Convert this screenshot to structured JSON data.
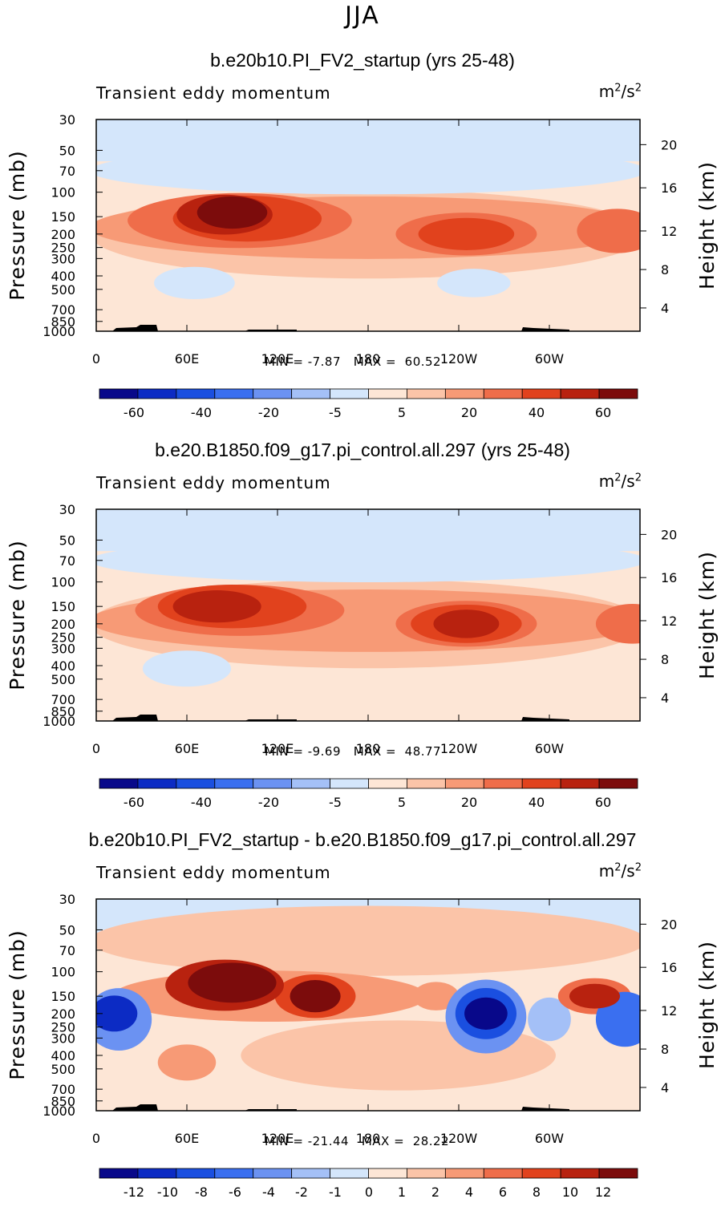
{
  "figure_title": "JJA",
  "colors": {
    "abs_scale": [
      "#08088a",
      "#0c2bc4",
      "#1a4fe0",
      "#3a6ff0",
      "#6b92f2",
      "#a4c0f7",
      "#d4e6fb",
      "#fde6d6",
      "#fbc4a8",
      "#f79a76",
      "#ef6d4a",
      "#e1421d",
      "#b8220f",
      "#7c0c0c"
    ],
    "diff_scale": [
      "#08088a",
      "#0c2bc4",
      "#1a4fe0",
      "#3a6ff0",
      "#6b92f2",
      "#a4c0f7",
      "#d4e6fb",
      "#fde6d6",
      "#fbc4a8",
      "#f79a76",
      "#ef6d4a",
      "#e1421d",
      "#b8220f",
      "#7c0c0c"
    ]
  },
  "chart_data": [
    {
      "type": "heatmap",
      "title": "b.e20b10.PI_FV2_startup (yrs 25-48)",
      "subtitle_left": "Transient eddy momentum",
      "units": "m²/s²",
      "ylabel": "Pressure (mb)",
      "ylabel_right": "Height (km)",
      "x_ticks": [
        "0",
        "60E",
        "120E",
        "180",
        "120W",
        "60W"
      ],
      "y_ticks": [
        "30",
        "50",
        "70",
        "100",
        "150",
        "200",
        "250",
        "300",
        "400",
        "500",
        "700",
        "850",
        "1000"
      ],
      "y_right_ticks": [
        "20",
        "16",
        "12",
        "8",
        "4"
      ],
      "min_label": "MIN =",
      "min_value": "-7.87",
      "max_label": "MAX =",
      "max_value": "60.52",
      "colorbar_labels": [
        "-60",
        "-40",
        "-20",
        "-5",
        "5",
        "20",
        "40",
        "60"
      ],
      "blobs": [
        {
          "lon": 90,
          "p": 140,
          "level": 13,
          "w": 38,
          "h": 0.3
        },
        {
          "lon": 85,
          "p": 145,
          "level": 12,
          "w": 55,
          "h": 0.4
        },
        {
          "lon": 100,
          "p": 155,
          "level": 11,
          "w": 90,
          "h": 0.48
        },
        {
          "lon": 95,
          "p": 160,
          "level": 10,
          "w": 140,
          "h": 0.6
        },
        {
          "lon": 245,
          "p": 200,
          "level": 11,
          "w": 55,
          "h": 0.3
        },
        {
          "lon": 245,
          "p": 200,
          "level": 10,
          "w": 85,
          "h": 0.44
        },
        {
          "lon": 345,
          "p": 190,
          "level": 10,
          "w": 45,
          "h": 0.46
        },
        {
          "lon": 180,
          "p": 180,
          "level": 9,
          "w": 360,
          "h": 0.7
        },
        {
          "lon": 180,
          "p": 200,
          "level": 8,
          "w": 360,
          "h": 1.05
        },
        {
          "lon": 65,
          "p": 450,
          "level": 6,
          "w": 45,
          "h": 0.3
        },
        {
          "lon": 250,
          "p": 450,
          "level": 6,
          "w": 40,
          "h": 0.25
        },
        {
          "lon": 180,
          "p": 70,
          "level": 6,
          "w": 360,
          "h": 0.5
        }
      ]
    },
    {
      "type": "heatmap",
      "title": "b.e20.B1850.f09_g17.pi_control.all.297 (yrs 25-48)",
      "subtitle_left": "Transient eddy momentum",
      "units": "m²/s²",
      "ylabel": "Pressure (mb)",
      "ylabel_right": "Height (km)",
      "x_ticks": [
        "0",
        "60E",
        "120E",
        "180",
        "120W",
        "60W"
      ],
      "y_ticks": [
        "30",
        "50",
        "70",
        "100",
        "150",
        "200",
        "250",
        "300",
        "400",
        "500",
        "700",
        "850",
        "1000"
      ],
      "y_right_ticks": [
        "20",
        "16",
        "12",
        "8",
        "4"
      ],
      "min_label": "MIN =",
      "min_value": "-9.69",
      "max_label": "MAX =",
      "max_value": "48.77",
      "colorbar_labels": [
        "-60",
        "-40",
        "-20",
        "-5",
        "5",
        "20",
        "40",
        "60"
      ],
      "blobs": [
        {
          "lon": 80,
          "p": 150,
          "level": 12,
          "w": 50,
          "h": 0.3
        },
        {
          "lon": 90,
          "p": 150,
          "level": 11,
          "w": 90,
          "h": 0.45
        },
        {
          "lon": 95,
          "p": 160,
          "level": 10,
          "w": 130,
          "h": 0.55
        },
        {
          "lon": 245,
          "p": 200,
          "level": 12,
          "w": 35,
          "h": 0.25
        },
        {
          "lon": 245,
          "p": 200,
          "level": 11,
          "w": 65,
          "h": 0.38
        },
        {
          "lon": 245,
          "p": 200,
          "level": 10,
          "w": 85,
          "h": 0.48
        },
        {
          "lon": 355,
          "p": 200,
          "level": 10,
          "w": 40,
          "h": 0.4
        },
        {
          "lon": 180,
          "p": 190,
          "level": 9,
          "w": 360,
          "h": 0.7
        },
        {
          "lon": 180,
          "p": 200,
          "level": 8,
          "w": 360,
          "h": 1.05
        },
        {
          "lon": 60,
          "p": 420,
          "level": 6,
          "w": 50,
          "h": 0.35
        },
        {
          "lon": 180,
          "p": 70,
          "level": 6,
          "w": 360,
          "h": 0.45
        }
      ]
    },
    {
      "type": "heatmap",
      "title": "b.e20b10.PI_FV2_startup - b.e20.B1850.f09_g17.pi_control.all.297",
      "subtitle_left": "Transient eddy momentum",
      "units": "m²/s²",
      "ylabel": "Pressure (mb)",
      "ylabel_right": "Height (km)",
      "x_ticks": [
        "0",
        "60E",
        "120E",
        "180",
        "120W",
        "60W"
      ],
      "y_ticks": [
        "30",
        "50",
        "70",
        "100",
        "150",
        "200",
        "250",
        "300",
        "400",
        "500",
        "700",
        "850",
        "1000"
      ],
      "y_right_ticks": [
        "20",
        "16",
        "12",
        "8",
        "4"
      ],
      "min_label": "MIN =",
      "min_value": "-21.44",
      "max_label": "MAX =",
      "max_value": "28.22",
      "colorbar_labels": [
        "-12",
        "-10",
        "-8",
        "-6",
        "-4",
        "-2",
        "-1",
        "0",
        "1",
        "2",
        "4",
        "6",
        "8",
        "10",
        "12"
      ],
      "blobs": [
        {
          "lon": 90,
          "p": 120,
          "level": 13,
          "w": 50,
          "h": 0.4
        },
        {
          "lon": 85,
          "p": 125,
          "level": 12,
          "w": 70,
          "h": 0.55
        },
        {
          "lon": 145,
          "p": 150,
          "level": 13,
          "w": 25,
          "h": 0.3
        },
        {
          "lon": 145,
          "p": 150,
          "level": 11,
          "w": 45,
          "h": 0.45
        },
        {
          "lon": 330,
          "p": 150,
          "level": 12,
          "w": 25,
          "h": 0.2
        },
        {
          "lon": 330,
          "p": 150,
          "level": 10,
          "w": 40,
          "h": 0.35
        },
        {
          "lon": 225,
          "p": 150,
          "level": 9,
          "w": 22,
          "h": 0.25
        },
        {
          "lon": 115,
          "p": 150,
          "level": 9,
          "w": 200,
          "h": 0.55
        },
        {
          "lon": 258,
          "p": 200,
          "level": 0,
          "w": 20,
          "h": 0.3
        },
        {
          "lon": 258,
          "p": 200,
          "level": 2,
          "w": 32,
          "h": 0.55
        },
        {
          "lon": 258,
          "p": 210,
          "level": 4,
          "w": 45,
          "h": 0.85
        },
        {
          "lon": 12,
          "p": 200,
          "level": 1,
          "w": 22,
          "h": 0.35
        },
        {
          "lon": 15,
          "p": 220,
          "level": 4,
          "w": 35,
          "h": 0.7
        },
        {
          "lon": 350,
          "p": 220,
          "level": 3,
          "w": 30,
          "h": 0.6
        },
        {
          "lon": 300,
          "p": 220,
          "level": 5,
          "w": 20,
          "h": 0.45
        },
        {
          "lon": 60,
          "p": 450,
          "level": 9,
          "w": 30,
          "h": 0.35
        },
        {
          "lon": 200,
          "p": 400,
          "level": 8,
          "w": 200,
          "h": 0.8
        },
        {
          "lon": 180,
          "p": 60,
          "level": 8,
          "w": 360,
          "h": 0.8
        }
      ]
    }
  ]
}
